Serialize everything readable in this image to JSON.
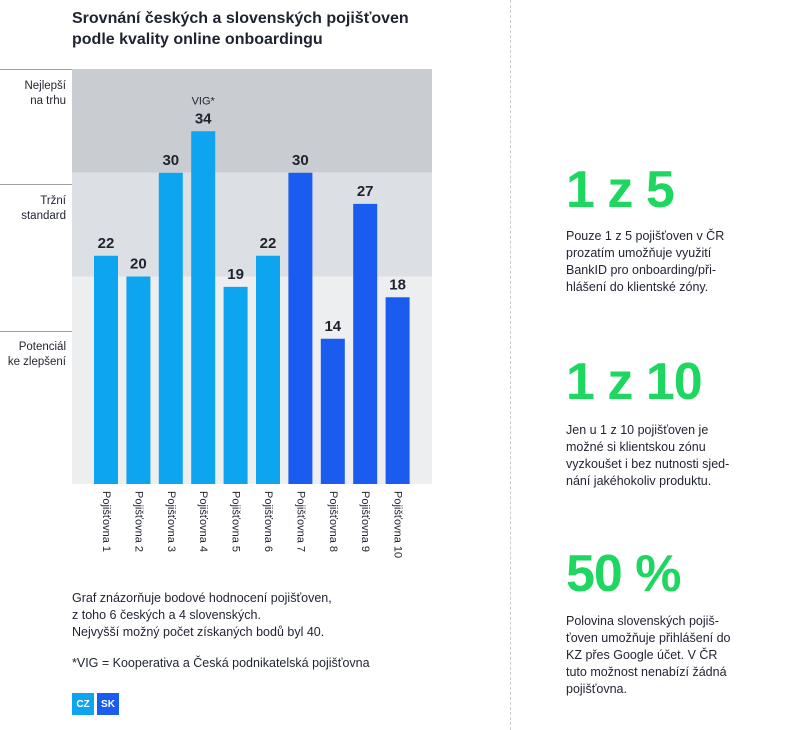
{
  "title_lines": [
    "Srovnání českých a slovenských pojišťoven",
    "podle kvality online onboardingu"
  ],
  "bands": [
    {
      "lines": [
        "Nejlepší",
        "na trhu"
      ],
      "range": [
        30,
        40
      ]
    },
    {
      "lines": [
        "Tržní",
        "standard"
      ],
      "range": [
        20,
        30
      ]
    },
    {
      "lines": [
        "Potenciál",
        "ke zlepšení"
      ],
      "range": [
        0,
        20
      ]
    }
  ],
  "chart_data": {
    "type": "bar",
    "categories": [
      "Pojišťovna 1",
      "Pojišťovna 2",
      "Pojišťovna 3",
      "Pojišťovna 4",
      "Pojišťovna 5",
      "Pojišťovna 6",
      "Pojišťovna 7",
      "Pojišťovna 8",
      "Pojišťovna 9",
      "Pojišťovna 10"
    ],
    "values": [
      22,
      20,
      30,
      34,
      19,
      22,
      30,
      14,
      27,
      18
    ],
    "country": [
      "CZ",
      "CZ",
      "CZ",
      "CZ",
      "CZ",
      "CZ",
      "SK",
      "SK",
      "SK",
      "SK"
    ],
    "annotation": {
      "index": 3,
      "text": "VIG*"
    },
    "ylim": [
      0,
      40
    ],
    "colors": {
      "CZ": "#0ea5f0",
      "SK": "#1a5cf0"
    },
    "band_colors": [
      "#c9ccd1",
      "#dcdfe3",
      "#eceef0"
    ]
  },
  "description_lines": [
    "Graf znázorňuje bodové hodnocení pojišťoven,",
    "z toho 6 českých a 4 slovenských.",
    "Nejvyšší možný počet získaných bodů byl 40."
  ],
  "footnote": "*VIG = Kooperativa a Česká podnikatelská pojišťovna",
  "legend": [
    {
      "label": "CZ",
      "color": "#0ea5f0"
    },
    {
      "label": "SK",
      "color": "#1a5cf0"
    }
  ],
  "stats": [
    {
      "big": "1 z 5",
      "lines": [
        "Pouze 1 z 5 pojišťoven v ČR",
        "prozatím umožňuje využití",
        "BankID pro onboarding/při-",
        "hlášení do klientské zóny."
      ]
    },
    {
      "big": "1 z 10",
      "lines": [
        "Jen u 1 z 10 pojišťoven je",
        "možné si klientskou zónu",
        "vyzkoušet i bez nutnosti sjed-",
        "nání jakéhokoliv produktu."
      ]
    },
    {
      "big": "50 %",
      "lines": [
        "Polovina slovenských pojiš-",
        "ťoven umožňuje přihlášení do",
        "KZ přes Google účet. V ČR",
        "tuto možnost nenabízí žádná",
        "pojišťovna."
      ]
    }
  ],
  "accent_color": "#1ed760"
}
